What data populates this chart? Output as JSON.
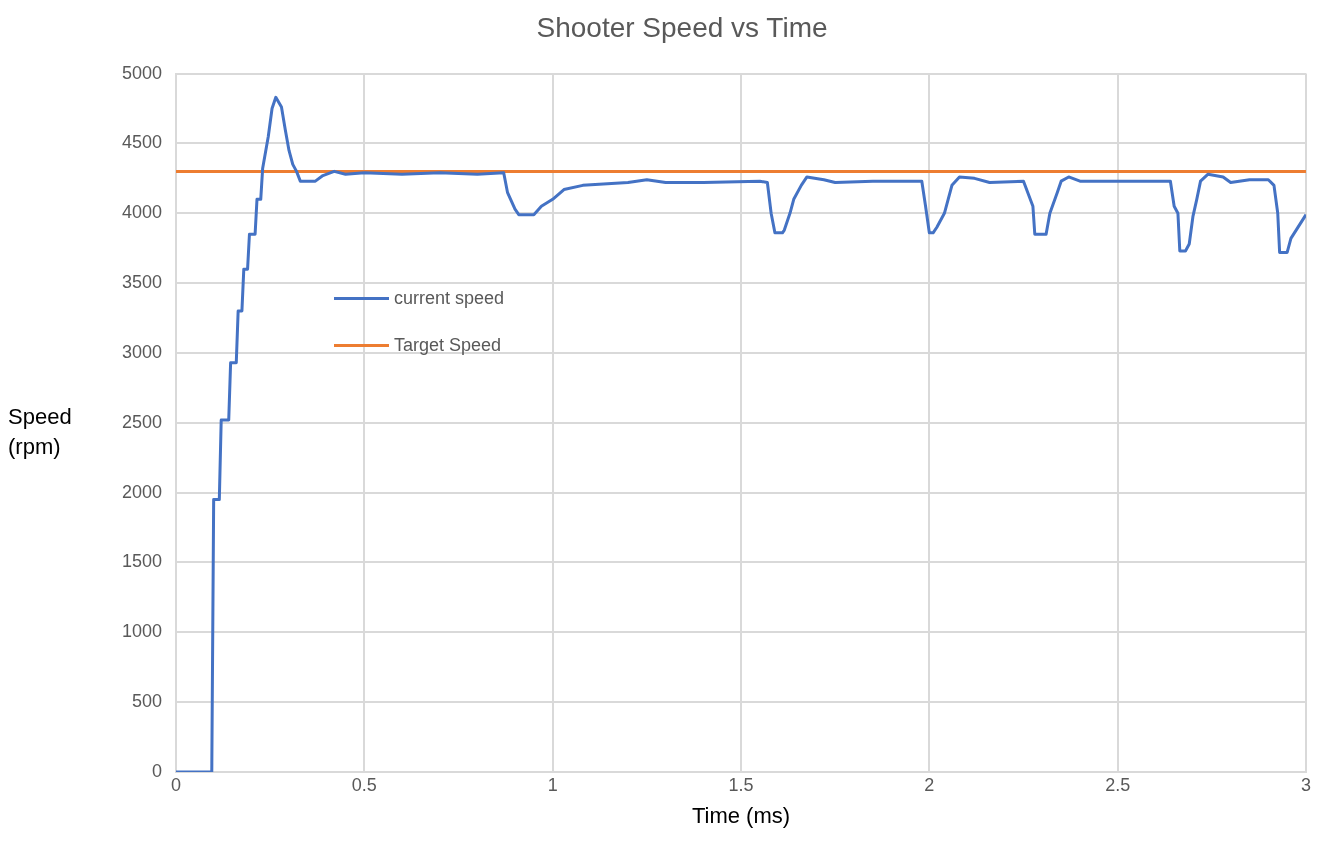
{
  "chart_data": {
    "type": "line",
    "title": "Shooter Speed vs Time",
    "xlabel": "Time (ms)",
    "ylabel": "Speed (rpm)",
    "xlim": [
      0,
      3
    ],
    "xticks": [
      0,
      0.5,
      1,
      1.5,
      2,
      2.5,
      3
    ],
    "ylim": [
      0,
      5000
    ],
    "yticks": [
      0,
      500,
      1000,
      1500,
      2000,
      2500,
      3000,
      3500,
      4000,
      4500,
      5000
    ],
    "grid": true,
    "legend": "left",
    "marker": "none",
    "line_style": "solid",
    "series": [
      {
        "name": "current speed",
        "color": "#4472c4",
        "x": [
          0,
          0.095,
          0.1,
          0.115,
          0.12,
          0.14,
          0.145,
          0.16,
          0.165,
          0.175,
          0.18,
          0.19,
          0.195,
          0.21,
          0.215,
          0.225,
          0.23,
          0.245,
          0.255,
          0.265,
          0.28,
          0.29,
          0.3,
          0.31,
          0.32,
          0.33,
          0.37,
          0.39,
          0.42,
          0.45,
          0.5,
          0.6,
          0.7,
          0.8,
          0.87,
          0.88,
          0.9,
          0.91,
          0.95,
          0.97,
          1.0,
          1.03,
          1.08,
          1.2,
          1.25,
          1.3,
          1.4,
          1.55,
          1.57,
          1.58,
          1.59,
          1.61,
          1.615,
          1.63,
          1.64,
          1.66,
          1.675,
          1.72,
          1.75,
          1.85,
          1.98,
          1.99,
          2.0,
          2.01,
          2.02,
          2.04,
          2.05,
          2.06,
          2.08,
          2.12,
          2.16,
          2.25,
          2.275,
          2.28,
          2.31,
          2.32,
          2.34,
          2.35,
          2.37,
          2.4,
          2.5,
          2.64,
          2.65,
          2.66,
          2.665,
          2.68,
          2.69,
          2.7,
          2.71,
          2.72,
          2.74,
          2.78,
          2.8,
          2.85,
          2.9,
          2.915,
          2.925,
          2.93,
          2.95,
          2.96,
          3.0
        ],
        "values": [
          0,
          0,
          1950,
          1950,
          2520,
          2520,
          2930,
          2930,
          3300,
          3300,
          3600,
          3600,
          3850,
          3850,
          4100,
          4100,
          4320,
          4550,
          4750,
          4830,
          4760,
          4600,
          4450,
          4350,
          4300,
          4230,
          4230,
          4270,
          4300,
          4280,
          4290,
          4280,
          4290,
          4280,
          4290,
          4150,
          4030,
          3990,
          3990,
          4050,
          4100,
          4170,
          4200,
          4220,
          4240,
          4220,
          4220,
          4230,
          4220,
          4000,
          3860,
          3860,
          3880,
          4000,
          4100,
          4200,
          4260,
          4240,
          4220,
          4230,
          4230,
          4050,
          3860,
          3860,
          3900,
          4000,
          4100,
          4200,
          4260,
          4250,
          4220,
          4230,
          4050,
          3850,
          3850,
          4000,
          4150,
          4230,
          4260,
          4230,
          4230,
          4230,
          4050,
          4000,
          3730,
          3730,
          3780,
          3980,
          4100,
          4230,
          4280,
          4260,
          4220,
          4240,
          4240,
          4200,
          4000,
          3720,
          3720,
          3820,
          3990
        ]
      },
      {
        "name": "Target Speed",
        "color": "#ed7d31",
        "x": [
          0,
          3
        ],
        "values": [
          4300,
          4300
        ]
      }
    ]
  }
}
